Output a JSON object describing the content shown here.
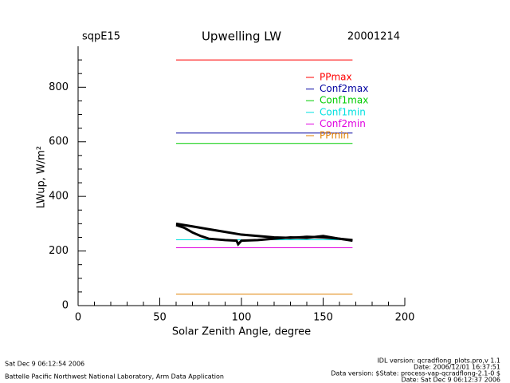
{
  "chart_data": {
    "type": "line",
    "title": "Upwelling LW",
    "site": "sqpE15",
    "date": "20001214",
    "xlabel": "Solar Zenith Angle, degree",
    "ylabel": "LWup, W/m²",
    "xlim": [
      0,
      200
    ],
    "ylim": [
      0,
      950
    ],
    "xticks": [
      0,
      50,
      100,
      150,
      200
    ],
    "yticks": [
      0,
      200,
      400,
      600,
      800
    ],
    "xminorticks": [
      10,
      20,
      30,
      40,
      60,
      70,
      80,
      90,
      110,
      120,
      130,
      140,
      160,
      170,
      180,
      190
    ],
    "yminorticks": [
      50,
      100,
      150,
      250,
      300,
      350,
      450,
      500,
      550,
      650,
      700,
      750,
      850,
      900
    ],
    "series": [
      {
        "name": "PPmax",
        "color": "#ff0000",
        "x": [
          60,
          168
        ],
        "values": [
          900,
          900
        ]
      },
      {
        "name": "Conf2max",
        "color": "#0000a0",
        "x": [
          60,
          168
        ],
        "values": [
          632,
          632
        ]
      },
      {
        "name": "Conf1max",
        "color": "#00cc00",
        "x": [
          60,
          168
        ],
        "values": [
          594,
          594
        ]
      },
      {
        "name": "Conf1min",
        "color": "#00e0e0",
        "x": [
          60,
          168
        ],
        "values": [
          241,
          241
        ]
      },
      {
        "name": "Conf2min",
        "color": "#e000e0",
        "x": [
          60,
          168
        ],
        "values": [
          212,
          212
        ]
      },
      {
        "name": "PPmin",
        "color": "#e08000",
        "x": [
          60,
          168
        ],
        "values": [
          42,
          42
        ]
      }
    ],
    "observations": [
      {
        "color": "#000000",
        "x": [
          60,
          70,
          80,
          90,
          100,
          110,
          120,
          130,
          140,
          150,
          160,
          168
        ],
        "values": [
          300,
          290,
          280,
          270,
          260,
          255,
          250,
          248,
          252,
          250,
          245,
          240
        ]
      },
      {
        "color": "#000000",
        "x": [
          60,
          65,
          70,
          75,
          80,
          90,
          97,
          98,
          100,
          110,
          120,
          130,
          140,
          150,
          160,
          168
        ],
        "values": [
          295,
          285,
          268,
          255,
          245,
          240,
          238,
          225,
          238,
          240,
          245,
          250,
          248,
          255,
          245,
          238
        ]
      }
    ]
  },
  "footer": {
    "run_date": "Sat Dec  9 06:12:54 2006",
    "lab": "Battelle Pacific Northwest National Laboratory, Arm Data Application",
    "idl_version": "IDL version: qcradflong_plots.pro,v 1.1",
    "idl_date": "Date: 2006/12/01 16:37:51",
    "data_version": "Data version: $State: process-vap-qcradflong-2.1-0 $",
    "data_date": "Date: Sat Dec  9 06:12:37 2006"
  }
}
